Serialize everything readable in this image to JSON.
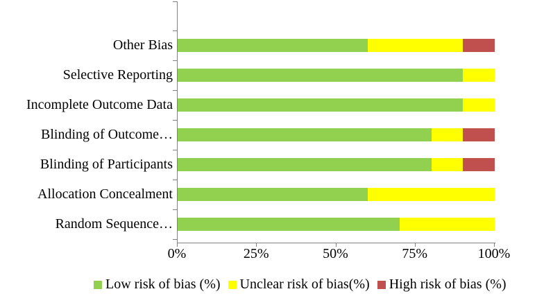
{
  "chart_data": {
    "type": "bar",
    "orientation": "horizontal",
    "stacked": true,
    "title": "",
    "xlabel": "",
    "ylabel": "",
    "x_axis": {
      "min": 0,
      "max": 100,
      "ticks": [
        "0%",
        "25%",
        "50%",
        "75%",
        "100%"
      ],
      "tick_values": [
        0,
        25,
        50,
        75,
        100
      ]
    },
    "grid": false,
    "legend_position": "bottom",
    "categories_order": "top-to-bottom",
    "categories": [
      "Other Bias",
      "Selective Reporting",
      "Incomplete Outcome Data",
      "Blinding of Outcome…",
      "Blinding of Participants",
      "Allocation Concealment",
      "Random Sequence…"
    ],
    "series": [
      {
        "name": "Low risk of bias (%)",
        "color": "#92D050",
        "values": [
          60,
          90,
          90,
          80,
          80,
          60,
          70
        ]
      },
      {
        "name": "Unclear risk of bias(%)",
        "color": "#FFFF00",
        "values": [
          30,
          10,
          10,
          10,
          10,
          40,
          30
        ]
      },
      {
        "name": "High risk of bias (%)",
        "color": "#C0504D",
        "values": [
          10,
          0,
          0,
          10,
          10,
          0,
          0
        ]
      }
    ],
    "colors": {
      "axis": "#808080",
      "text": "#000000",
      "background": "#FFFFFF"
    }
  }
}
